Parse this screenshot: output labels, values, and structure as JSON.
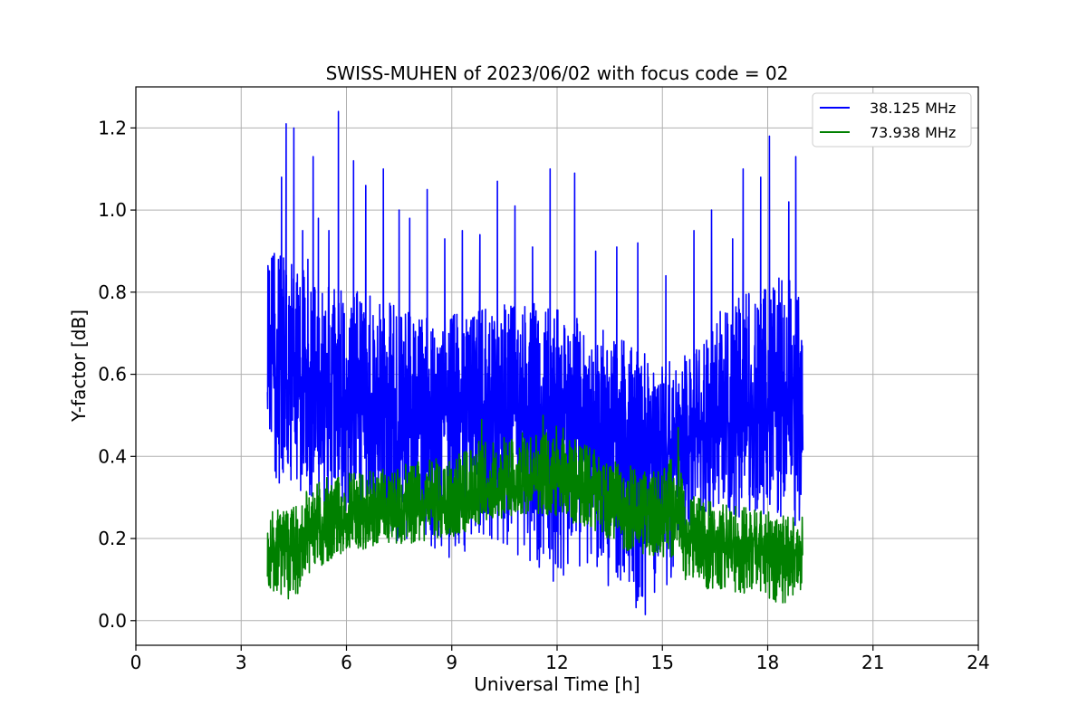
{
  "chart_data": {
    "type": "line",
    "title": "SWISS-MUHEN of 2023/06/02 with focus code = 02",
    "xlabel": "Universal Time [h]",
    "ylabel": "Y-factor [dB]",
    "xlim": [
      0,
      24
    ],
    "ylim": [
      -0.06,
      1.3
    ],
    "xticks": [
      0,
      3,
      6,
      9,
      12,
      15,
      18,
      21,
      24
    ],
    "yticks": [
      0.0,
      0.2,
      0.4,
      0.6,
      0.8,
      1.0,
      1.2
    ],
    "xtick_labels": [
      "0",
      "3",
      "6",
      "9",
      "12",
      "15",
      "18",
      "21",
      "24"
    ],
    "ytick_labels": [
      "0.0",
      "0.2",
      "0.4",
      "0.6",
      "0.8",
      "1.0",
      "1.2"
    ],
    "grid": true,
    "legend_position": "top-right",
    "series": [
      {
        "name": "38.125 MHz",
        "color": "#0000ff",
        "x": [
          3.75,
          4.0,
          4.5,
          5.0,
          6.0,
          7.0,
          8.0,
          9.0,
          10.0,
          11.0,
          12.0,
          13.0,
          14.0,
          15.0,
          15.5,
          16.0,
          17.0,
          18.0,
          18.5,
          19.0
        ],
        "mean": [
          0.62,
          0.6,
          0.57,
          0.55,
          0.55,
          0.52,
          0.5,
          0.5,
          0.53,
          0.52,
          0.52,
          0.48,
          0.44,
          0.43,
          0.44,
          0.46,
          0.5,
          0.52,
          0.55,
          0.55
        ],
        "low": [
          0.5,
          0.33,
          0.32,
          0.3,
          0.25,
          0.2,
          0.18,
          0.15,
          0.2,
          0.15,
          0.08,
          0.12,
          0.03,
          0.0,
          0.2,
          0.24,
          0.25,
          0.26,
          0.2,
          0.25
        ],
        "high": [
          0.9,
          0.9,
          0.88,
          0.85,
          0.82,
          0.78,
          0.75,
          0.75,
          0.78,
          0.78,
          0.76,
          0.72,
          0.68,
          0.62,
          0.65,
          0.72,
          0.78,
          0.82,
          0.86,
          0.78
        ],
        "spikes": [
          [
            4.15,
            1.08
          ],
          [
            4.28,
            1.21
          ],
          [
            4.5,
            1.2
          ],
          [
            4.75,
            0.95
          ],
          [
            4.9,
            0.88
          ],
          [
            5.05,
            1.13
          ],
          [
            5.2,
            0.98
          ],
          [
            5.5,
            0.95
          ],
          [
            5.77,
            1.24
          ],
          [
            6.2,
            1.12
          ],
          [
            6.55,
            1.06
          ],
          [
            7.05,
            1.1
          ],
          [
            7.5,
            1.0
          ],
          [
            7.8,
            0.98
          ],
          [
            8.3,
            1.05
          ],
          [
            8.8,
            0.93
          ],
          [
            9.3,
            0.95
          ],
          [
            9.8,
            0.94
          ],
          [
            10.3,
            1.07
          ],
          [
            10.8,
            1.01
          ],
          [
            11.3,
            0.91
          ],
          [
            11.8,
            1.1
          ],
          [
            12.5,
            1.09
          ],
          [
            13.1,
            0.9
          ],
          [
            13.7,
            0.91
          ],
          [
            14.3,
            0.92
          ],
          [
            15.1,
            0.84
          ],
          [
            15.9,
            0.95
          ],
          [
            16.4,
            1.0
          ],
          [
            17.0,
            0.93
          ],
          [
            17.3,
            1.1
          ],
          [
            17.8,
            1.08
          ],
          [
            18.05,
            1.18
          ],
          [
            18.6,
            1.02
          ],
          [
            18.8,
            1.13
          ]
        ]
      },
      {
        "name": "73.938 MHz",
        "color": "#008000",
        "x": [
          3.75,
          4.0,
          4.5,
          5.0,
          6.0,
          7.0,
          8.0,
          9.0,
          10.0,
          11.0,
          12.0,
          13.0,
          14.0,
          15.0,
          15.5,
          15.6,
          16.0,
          17.0,
          18.0,
          18.5,
          19.0
        ],
        "mean": [
          0.16,
          0.17,
          0.17,
          0.22,
          0.25,
          0.26,
          0.27,
          0.29,
          0.31,
          0.33,
          0.33,
          0.31,
          0.28,
          0.26,
          0.27,
          0.2,
          0.19,
          0.18,
          0.17,
          0.16,
          0.16
        ],
        "low": [
          0.08,
          0.06,
          0.05,
          0.12,
          0.16,
          0.18,
          0.19,
          0.2,
          0.24,
          0.26,
          0.25,
          0.22,
          0.17,
          0.15,
          0.16,
          0.1,
          0.08,
          0.07,
          0.05,
          0.04,
          0.08
        ],
        "high": [
          0.27,
          0.27,
          0.28,
          0.34,
          0.36,
          0.37,
          0.39,
          0.4,
          0.45,
          0.46,
          0.48,
          0.42,
          0.38,
          0.36,
          0.47,
          0.32,
          0.3,
          0.28,
          0.27,
          0.26,
          0.26
        ],
        "spikes": [
          [
            9.85,
            0.49
          ],
          [
            11.6,
            0.5
          ],
          [
            15.45,
            0.47
          ]
        ]
      }
    ]
  }
}
